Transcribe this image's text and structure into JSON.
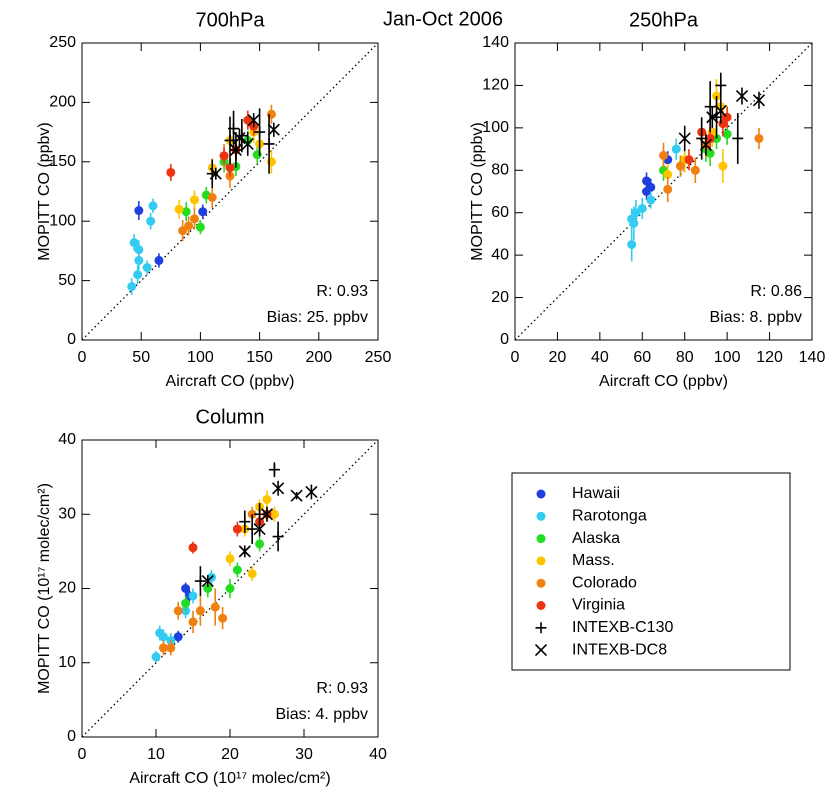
{
  "title": "Jan-Oct 2006",
  "chart_data": [
    {
      "type": "scatter",
      "title": "700hPa",
      "xlabel": "Aircraft CO (ppbv)",
      "ylabel": "MOPITT CO (ppbv)",
      "xlim": [
        0,
        250
      ],
      "ylim": [
        0,
        250
      ],
      "xticks": [
        0,
        50,
        100,
        150,
        200,
        250
      ],
      "yticks": [
        0,
        50,
        100,
        150,
        200,
        250
      ],
      "annotations": [
        "R: 0.93",
        "Bias:  25. ppbv"
      ],
      "series": [
        {
          "name": "Hawaii",
          "color": "#1f3fe0",
          "marker": "circle",
          "x": [
            48,
            65,
            102
          ],
          "values": [
            109,
            67,
            108
          ],
          "yerr": [
            8,
            6,
            6
          ]
        },
        {
          "name": "Rarotonga",
          "color": "#33ccf0",
          "marker": "circle",
          "x": [
            42,
            44,
            47,
            48,
            55,
            58,
            60,
            48
          ],
          "values": [
            45,
            82,
            55,
            67,
            61,
            100,
            113,
            76
          ],
          "yerr": [
            7,
            7,
            8,
            8,
            6,
            7,
            6,
            8
          ]
        },
        {
          "name": "Alaska",
          "color": "#22dd22",
          "marker": "circle",
          "x": [
            88,
            100,
            105,
            120,
            130,
            148,
            140
          ],
          "values": [
            108,
            95,
            122,
            150,
            146,
            156,
            168
          ],
          "yerr": [
            8,
            6,
            7,
            9,
            8,
            7,
            8
          ]
        },
        {
          "name": "Mass.",
          "color": "#ffc400",
          "marker": "circle",
          "x": [
            82,
            95,
            110,
            145,
            150,
            160,
            125
          ],
          "values": [
            110,
            118,
            145,
            175,
            165,
            150,
            168
          ],
          "yerr": [
            8,
            8,
            8,
            9,
            9,
            10,
            9
          ]
        },
        {
          "name": "Colorado",
          "color": "#f08010",
          "marker": "circle",
          "x": [
            85,
            95,
            90,
            110,
            125,
            160,
            120
          ],
          "values": [
            92,
            102,
            96,
            120,
            138,
            190,
            155
          ],
          "yerr": [
            9,
            9,
            8,
            9,
            10,
            8,
            10
          ]
        },
        {
          "name": "Virginia",
          "color": "#ee3311",
          "marker": "circle",
          "x": [
            75,
            120,
            125,
            130,
            140,
            145
          ],
          "values": [
            141,
            155,
            145,
            160,
            185,
            180
          ],
          "yerr": [
            7,
            7,
            8,
            9,
            8,
            8
          ]
        },
        {
          "name": "INTEXB-C130",
          "color": "#000000",
          "marker": "plus",
          "x": [
            110,
            125,
            130,
            135,
            128,
            150,
            158
          ],
          "values": [
            140,
            168,
            160,
            172,
            178,
            175,
            165
          ],
          "yerr": [
            12,
            20,
            15,
            14,
            15,
            20,
            25
          ]
        },
        {
          "name": "INTEXB-DC8",
          "color": "#000000",
          "marker": "x",
          "x": [
            113,
            130,
            133,
            140,
            145,
            162
          ],
          "values": [
            140,
            160,
            170,
            165,
            185,
            177
          ],
          "yerr": [
            5,
            8,
            8,
            10,
            6,
            6
          ]
        }
      ]
    },
    {
      "type": "scatter",
      "title": "250hPa",
      "xlabel": "Aircraft CO (ppbv)",
      "ylabel": "MOPITT CO (ppbv)",
      "xlim": [
        0,
        140
      ],
      "ylim": [
        0,
        140
      ],
      "xticks": [
        0,
        20,
        40,
        60,
        80,
        100,
        120,
        140
      ],
      "yticks": [
        0,
        20,
        40,
        60,
        80,
        100,
        120,
        140
      ],
      "annotations": [
        "R: 0.86",
        "Bias:   8. ppbv"
      ],
      "series": [
        {
          "color": "#1f3fe0",
          "marker": "circle",
          "x": [
            62,
            62,
            64,
            72
          ],
          "values": [
            70,
            75,
            72,
            85
          ],
          "yerr": [
            4,
            4,
            4,
            4
          ]
        },
        {
          "color": "#33ccf0",
          "marker": "circle",
          "x": [
            55,
            55,
            57,
            56,
            60,
            64,
            76
          ],
          "values": [
            57,
            45,
            60,
            55,
            62,
            66,
            90
          ],
          "yerr": [
            5,
            8,
            6,
            8,
            5,
            4,
            5
          ]
        },
        {
          "color": "#22dd22",
          "marker": "circle",
          "x": [
            70,
            78,
            90,
            95,
            100,
            92
          ],
          "values": [
            80,
            82,
            90,
            95,
            97,
            88
          ],
          "yerr": [
            5,
            5,
            6,
            5,
            5,
            6
          ]
        },
        {
          "color": "#ffc400",
          "marker": "circle",
          "x": [
            80,
            93,
            95,
            97,
            98,
            72
          ],
          "values": [
            85,
            98,
            115,
            110,
            82,
            78
          ],
          "yerr": [
            6,
            7,
            8,
            7,
            8,
            5
          ]
        },
        {
          "color": "#f08010",
          "marker": "circle",
          "x": [
            70,
            72,
            78,
            85,
            90,
            115
          ],
          "values": [
            87,
            71,
            82,
            80,
            92,
            95
          ],
          "yerr": [
            6,
            6,
            5,
            6,
            6,
            5
          ]
        },
        {
          "color": "#ee3311",
          "marker": "circle",
          "x": [
            82,
            88,
            92,
            100,
            98
          ],
          "values": [
            85,
            98,
            95,
            105,
            102
          ],
          "yerr": [
            5,
            6,
            6,
            5,
            6
          ]
        },
        {
          "color": "#000000",
          "marker": "plus",
          "x": [
            88,
            92,
            97,
            105,
            95
          ],
          "values": [
            95,
            110,
            120,
            95,
            105
          ],
          "yerr": [
            10,
            12,
            6,
            12,
            10
          ]
        },
        {
          "color": "#000000",
          "marker": "x",
          "x": [
            80,
            93,
            97,
            107,
            115,
            90
          ],
          "values": [
            95,
            105,
            108,
            115,
            113,
            92
          ],
          "yerr": [
            6,
            5,
            6,
            4,
            4,
            5
          ]
        }
      ]
    },
    {
      "type": "scatter",
      "title": "Column",
      "xlabel": "Aircraft CO (10¹⁷ molec/cm²)",
      "ylabel": "MOPITT CO (10¹⁷ molec/cm²)",
      "xlim": [
        0,
        40
      ],
      "ylim": [
        0,
        40
      ],
      "xticks": [
        0,
        10,
        20,
        30,
        40
      ],
      "yticks": [
        0,
        10,
        20,
        30,
        40
      ],
      "annotations": [
        "R: 0.93",
        "Bias:  4. ppbv"
      ],
      "series": [
        {
          "color": "#1f3fe0",
          "marker": "circle",
          "x": [
            13,
            14,
            14.5
          ],
          "values": [
            13.5,
            20,
            19
          ],
          "yerr": [
            0.8,
            0.8,
            0.8
          ]
        },
        {
          "color": "#33ccf0",
          "marker": "circle",
          "x": [
            10,
            10.5,
            11,
            12,
            14,
            15,
            17.5
          ],
          "values": [
            10.8,
            14,
            13.5,
            13,
            17,
            19,
            21.5
          ],
          "yerr": [
            0.8,
            1,
            1,
            1,
            1,
            1,
            1
          ]
        },
        {
          "color": "#22dd22",
          "marker": "circle",
          "x": [
            14,
            17,
            20,
            21,
            24
          ],
          "values": [
            18,
            20,
            20,
            22.5,
            26
          ],
          "yerr": [
            1,
            1.2,
            1.3,
            1,
            1
          ]
        },
        {
          "color": "#ffc400",
          "marker": "circle",
          "x": [
            20,
            22,
            23,
            25,
            26,
            24
          ],
          "values": [
            24,
            28,
            22,
            32,
            30,
            31
          ],
          "yerr": [
            1,
            1,
            1,
            1.2,
            1,
            1
          ]
        },
        {
          "color": "#f08010",
          "marker": "circle",
          "x": [
            11,
            12,
            13,
            15,
            16,
            18,
            19,
            23
          ],
          "values": [
            12,
            12,
            17,
            15.5,
            17,
            17.5,
            16,
            30
          ],
          "yerr": [
            1,
            1,
            1.2,
            1.5,
            2,
            2.5,
            1.5,
            1
          ]
        },
        {
          "color": "#ee3311",
          "marker": "circle",
          "x": [
            15,
            21,
            24,
            25
          ],
          "values": [
            25.5,
            28,
            29,
            30
          ],
          "yerr": [
            0.8,
            1,
            1,
            1
          ]
        },
        {
          "color": "#000000",
          "marker": "plus",
          "x": [
            16,
            22,
            23,
            24,
            26,
            26.5
          ],
          "values": [
            21,
            29,
            28,
            30,
            36,
            27
          ],
          "yerr": [
            2,
            1.5,
            2,
            1.5,
            1,
            2
          ]
        },
        {
          "color": "#000000",
          "marker": "x",
          "x": [
            17,
            22,
            24,
            25,
            26.5,
            29,
            31
          ],
          "values": [
            21,
            25,
            28,
            30,
            33.5,
            32.5,
            33
          ],
          "yerr": [
            0.8,
            0.8,
            1,
            1,
            1,
            0.5,
            1
          ]
        }
      ]
    }
  ]
}
